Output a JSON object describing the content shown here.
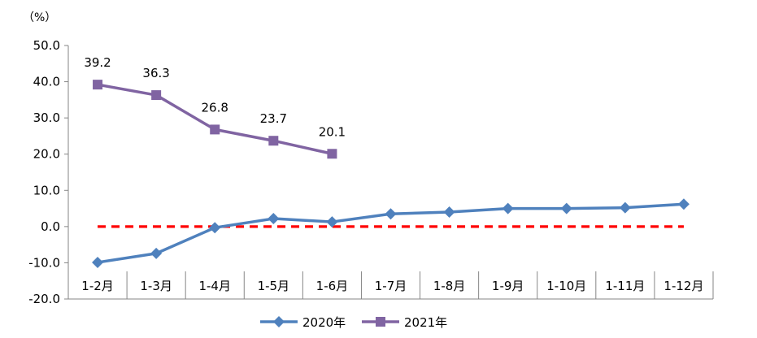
{
  "chart_data": {
    "type": "line",
    "unit_label": "（%）",
    "categories": [
      "1-2月",
      "1-3月",
      "1-4月",
      "1-5月",
      "1-6月",
      "1-7月",
      "1-8月",
      "1-9月",
      "1-10月",
      "1-11月",
      "1-12月"
    ],
    "ylim": [
      -20,
      50
    ],
    "y_ticks": [
      -20,
      -10,
      0,
      10,
      20,
      30,
      40,
      50
    ],
    "y_tick_labels": [
      "-20.0",
      "-10.0",
      "0.0",
      "10.0",
      "20.0",
      "30.0",
      "40.0",
      "50.0"
    ],
    "grid": false,
    "legend_position": "bottom",
    "series": [
      {
        "name": "2020年",
        "color": "#4F81BD",
        "marker": "diamond",
        "values": [
          -9.9,
          -7.4,
          -0.3,
          2.2,
          1.3,
          3.5,
          4.0,
          5.0,
          5.0,
          5.2,
          6.2
        ],
        "show_labels": false
      },
      {
        "name": "2021年",
        "color": "#8064A2",
        "marker": "square",
        "values": [
          39.2,
          36.3,
          26.8,
          23.7,
          20.1,
          null,
          null,
          null,
          null,
          null,
          null
        ],
        "labels": [
          "39.2",
          "36.3",
          "26.8",
          "23.7",
          "20.1"
        ],
        "show_labels": true
      }
    ],
    "reference_line": {
      "value": 0,
      "color": "#FF0000",
      "style": "dashed"
    }
  }
}
